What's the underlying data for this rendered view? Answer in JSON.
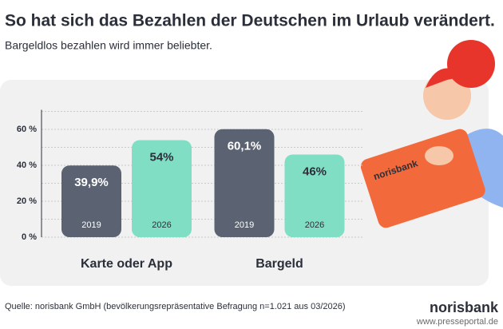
{
  "title": "So hat sich das Bezahlen der Deutschen im Urlaub verändert.",
  "subtitle": "Bargeldlos bezahlen wird immer beliebter.",
  "source": "Quelle: norisbank GmbH (bevölkerungsrepräsentative Befragung n=1.021 aus 03/2026)",
  "logo": "norisbank",
  "card_text": "norisbank",
  "watermark": "www.presseportal.de",
  "chart_data": {
    "type": "bar",
    "categories": [
      "Karte oder App",
      "Bargeld"
    ],
    "series": [
      {
        "name": "2019",
        "color": "#5b6372",
        "label_color": "#ffffff",
        "values": [
          39.9,
          60.1
        ],
        "value_labels": [
          "39,9%",
          "60,1%"
        ]
      },
      {
        "name": "2026",
        "color": "#7fdec3",
        "label_color": "#2b2f3a",
        "values": [
          54,
          46
        ],
        "value_labels": [
          "54%",
          "46%"
        ]
      }
    ],
    "ylim": [
      0,
      70
    ],
    "yticks": [
      {
        "value": 0,
        "label": "0 %"
      },
      {
        "value": 20,
        "label": "20 %"
      },
      {
        "value": 40,
        "label": "40 %"
      },
      {
        "value": 60,
        "label": "60 %"
      }
    ],
    "minor_yticks": [
      10,
      30,
      50,
      70
    ],
    "grid": true
  }
}
